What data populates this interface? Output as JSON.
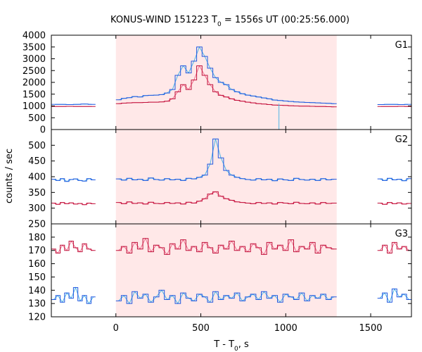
{
  "chart_data": {
    "type": "line",
    "title": "KONUS-WIND 151223 T",
    "title_sub": "0",
    "title_suffix": " = 1556s UT (00:25:56.000)",
    "xlabel": "T - T",
    "xlabel_sub": "0",
    "xlabel_suffix": ", s",
    "ylabel": "counts / sec",
    "xlim": [
      -380,
      1740
    ],
    "xticks": [
      0,
      500,
      1000,
      1500
    ],
    "highlight_interval": [
      0,
      1300
    ],
    "highlight_color": "#ffe8e8",
    "colors": {
      "blue": "#1f57e0",
      "red": "#c0103a",
      "cyan": "#4fb6e6",
      "pink": "#f07090"
    },
    "panels": [
      {
        "label": "G1",
        "ylim": [
          0,
          4000
        ],
        "yticks": [
          0,
          500,
          1000,
          1500,
          2000,
          2500,
          3000,
          3500,
          4000
        ],
        "segments": [
          {
            "x": [
              -380,
              -120
            ],
            "blue": [
              1070,
              1070,
              1060,
              1070,
              1080,
              1070
            ],
            "red": [
              980,
              975,
              985,
              980,
              975,
              980
            ]
          },
          {
            "x": [
              0,
              1300
            ],
            "blue": [
              1260,
              1320,
              1350,
              1400,
              1380,
              1440,
              1450,
              1460,
              1480,
              1550,
              1700,
              2300,
              2700,
              2400,
              2900,
              3500,
              3100,
              2600,
              2200,
              2000,
              1900,
              1700,
              1600,
              1520,
              1460,
              1420,
              1380,
              1340,
              1300,
              1250,
              1230,
              1210,
              1190,
              1170,
              1160,
              1150,
              1140,
              1130,
              1120,
              1110,
              1100
            ],
            "red": [
              1100,
              1120,
              1130,
              1140,
              1140,
              1150,
              1160,
              1160,
              1170,
              1200,
              1300,
              1600,
              1900,
              1700,
              2100,
              2700,
              2300,
              1900,
              1600,
              1450,
              1380,
              1300,
              1240,
              1200,
              1160,
              1130,
              1100,
              1080,
              1060,
              1040,
              1030,
              1020,
              1010,
              1000,
              995,
              990,
              985,
              980,
              975,
              970,
              965
            ]
          },
          {
            "x": [
              1540,
              1740
            ],
            "blue": [
              1060,
              1070,
              1065,
              1060,
              1070
            ],
            "red": [
              980,
              975,
              980,
              985,
              975
            ]
          }
        ],
        "dip": {
          "x": 960,
          "value": 0
        }
      },
      {
        "label": "G2",
        "ylim": [
          250,
          550
        ],
        "yticks": [
          250,
          300,
          350,
          400,
          450,
          500
        ],
        "segments": [
          {
            "x": [
              -380,
              -120
            ],
            "blue": [
              392,
              388,
              394,
              385,
              391,
              393,
              388,
              386,
              394,
              390
            ],
            "red": [
              316,
              312,
              318,
              314,
              317,
              313,
              315,
              311,
              316,
              314
            ]
          },
          {
            "x": [
              0,
              1300
            ],
            "blue": [
              393,
              389,
              395,
              390,
              392,
              388,
              396,
              391,
              389,
              394,
              390,
              392,
              388,
              395,
              393,
              398,
              405,
              440,
              520,
              460,
              420,
              405,
              398,
              394,
              391,
              389,
              394,
              390,
              392,
              387,
              393,
              390,
              388,
              395,
              391,
              389,
              392,
              388,
              394,
              390,
              392
            ],
            "red": [
              318,
              314,
              320,
              315,
              317,
              313,
              319,
              315,
              314,
              318,
              315,
              317,
              313,
              319,
              316,
              322,
              330,
              345,
              352,
              338,
              330,
              325,
              320,
              318,
              316,
              314,
              318,
              315,
              317,
              313,
              318,
              316,
              314,
              319,
              315,
              314,
              317,
              313,
              318,
              315,
              316
            ]
          },
          {
            "x": [
              1540,
              1740
            ],
            "blue": [
              393,
              388,
              395,
              390,
              392,
              387,
              394
            ],
            "red": [
              316,
              312,
              318,
              314,
              317,
              313,
              315
            ]
          }
        ]
      },
      {
        "label": "G3",
        "ylim": [
          120,
          190
        ],
        "yticks": [
          120,
          130,
          140,
          150,
          160,
          170,
          180
        ],
        "segments": [
          {
            "x": [
              -380,
              -120
            ],
            "blue": [
              133,
              136,
              131,
              138,
              134,
              142,
              132,
              136,
              130,
              135
            ],
            "red": [
              171,
              168,
              174,
              170,
              177,
              172,
              169,
              175,
              171,
              170
            ]
          },
          {
            "x": [
              0,
              1300
            ],
            "blue": [
              132,
              136,
              130,
              139,
              134,
              137,
              131,
              135,
              140,
              133,
              136,
              130,
              138,
              134,
              132,
              137,
              135,
              131,
              139,
              133,
              136,
              134,
              138,
              132,
              135,
              137,
              133,
              139,
              134,
              136,
              131,
              137,
              135,
              133,
              138,
              132,
              136,
              134,
              137,
              133,
              135
            ],
            "red": [
              170,
              173,
              168,
              176,
              171,
              179,
              169,
              174,
              172,
              167,
              175,
              171,
              178,
              170,
              173,
              169,
              176,
              172,
              168,
              174,
              171,
              177,
              170,
              173,
              169,
              175,
              172,
              167,
              176,
              171,
              174,
              170,
              178,
              169,
              173,
              171,
              176,
              168,
              174,
              172,
              171
            ]
          },
          {
            "x": [
              1540,
              1740
            ],
            "blue": [
              134,
              138,
              131,
              141,
              135,
              137,
              133
            ],
            "red": [
              170,
              174,
              168,
              176,
              171,
              173,
              170
            ]
          }
        ]
      }
    ]
  }
}
